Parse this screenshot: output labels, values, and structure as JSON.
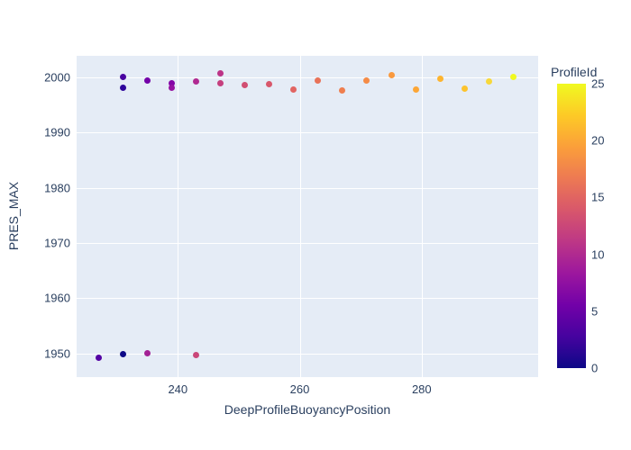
{
  "figure": {
    "background_color": "#ffffff",
    "plot_background_color": "#e5ecf6",
    "grid_color": "#ffffff",
    "font_color": "#2a3f5f"
  },
  "chart_data": {
    "type": "scatter",
    "title": "",
    "xlabel": "DeepProfileBuoyancyPosition",
    "ylabel": "PRES_MAX",
    "xlim": [
      223.4,
      299.1
    ],
    "ylim": [
      1945.7,
      2003.9
    ],
    "x_ticks": [
      240,
      260,
      280
    ],
    "y_ticks": [
      1950,
      1960,
      1970,
      1980,
      1990,
      2000
    ],
    "grid": true,
    "legend": "colorbar",
    "marker_size_px": 7,
    "points": [
      {
        "x": 227,
        "y": 1949.2,
        "profile_id": 3,
        "color": "#5402a3"
      },
      {
        "x": 231,
        "y": 2000.0,
        "profile_id": 2,
        "color": "#4903a0"
      },
      {
        "x": 231,
        "y": 1998.2,
        "profile_id": 1,
        "color": "#2d049b"
      },
      {
        "x": 231,
        "y": 1949.9,
        "profile_id": 0,
        "color": "#0d0887"
      },
      {
        "x": 235,
        "y": 1999.5,
        "profile_id": 6,
        "color": "#7301a8"
      },
      {
        "x": 235,
        "y": 1950.0,
        "profile_id": 9,
        "color": "#a32194"
      },
      {
        "x": 239,
        "y": 1999.0,
        "profile_id": 7,
        "color": "#8405a7"
      },
      {
        "x": 239,
        "y": 1998.2,
        "profile_id": 8,
        "color": "#9612a1"
      },
      {
        "x": 243,
        "y": 1999.3,
        "profile_id": 10,
        "color": "#b02991"
      },
      {
        "x": 243,
        "y": 1949.7,
        "profile_id": 13,
        "color": "#ca4779"
      },
      {
        "x": 247,
        "y": 2000.7,
        "profile_id": 11,
        "color": "#bc3487"
      },
      {
        "x": 247,
        "y": 1998.9,
        "profile_id": 12,
        "color": "#c53f7e"
      },
      {
        "x": 251,
        "y": 1998.6,
        "profile_id": 14,
        "color": "#d14e72"
      },
      {
        "x": 255,
        "y": 1998.8,
        "profile_id": 15,
        "color": "#d8576b"
      },
      {
        "x": 259,
        "y": 1997.8,
        "profile_id": 16,
        "color": "#e16462"
      },
      {
        "x": 263,
        "y": 1999.5,
        "profile_id": 17,
        "color": "#e87258"
      },
      {
        "x": 267,
        "y": 1997.7,
        "profile_id": 18,
        "color": "#ef7e4e"
      },
      {
        "x": 271,
        "y": 1999.4,
        "profile_id": 19,
        "color": "#f58b46"
      },
      {
        "x": 275,
        "y": 2000.4,
        "profile_id": 20,
        "color": "#f9993e"
      },
      {
        "x": 279,
        "y": 1997.8,
        "profile_id": 21,
        "color": "#fca636"
      },
      {
        "x": 283,
        "y": 1999.8,
        "profile_id": 22,
        "color": "#fdb42f"
      },
      {
        "x": 287,
        "y": 1998.0,
        "profile_id": 23,
        "color": "#fcc32d"
      },
      {
        "x": 291,
        "y": 1999.2,
        "profile_id": 24,
        "color": "#f7d83a"
      },
      {
        "x": 295,
        "y": 2000.1,
        "profile_id": 25,
        "color": "#f0f921"
      }
    ],
    "colorbar": {
      "title": "ProfileId",
      "min": 0,
      "max": 25,
      "ticks": [
        0,
        5,
        10,
        15,
        20,
        25
      ],
      "colormap": "plasma",
      "gradient_stops": [
        {
          "at": 0.0,
          "color": "#0d0887"
        },
        {
          "at": 0.111,
          "color": "#46039f"
        },
        {
          "at": 0.222,
          "color": "#7201a8"
        },
        {
          "at": 0.333,
          "color": "#9c179e"
        },
        {
          "at": 0.444,
          "color": "#bd3786"
        },
        {
          "at": 0.556,
          "color": "#d8576b"
        },
        {
          "at": 0.667,
          "color": "#ed7953"
        },
        {
          "at": 0.778,
          "color": "#fb9f3a"
        },
        {
          "at": 0.889,
          "color": "#fdca26"
        },
        {
          "at": 1.0,
          "color": "#f0f921"
        }
      ]
    }
  }
}
